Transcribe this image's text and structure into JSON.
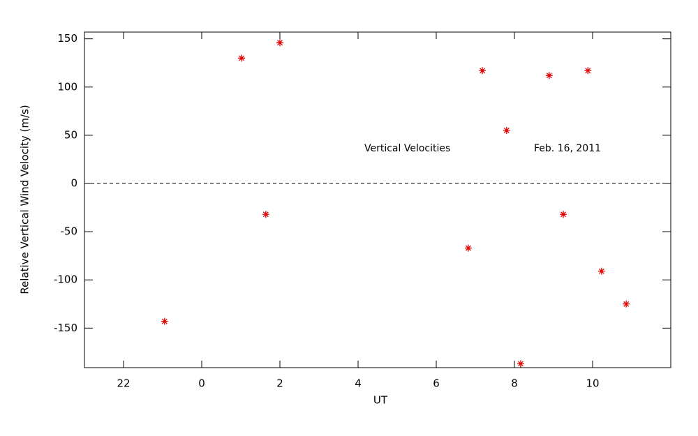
{
  "chart_data": {
    "type": "scatter",
    "x_label": "UT",
    "y_label": "Relative Vertical Wind Velocity (m/s)",
    "annotations": [
      "Vertical Velocities",
      "Feb. 16, 2011"
    ],
    "x": [
      -0.95,
      1.02,
      1.64,
      2.0,
      6.82,
      7.18,
      7.8,
      8.16,
      8.89,
      9.25,
      9.88,
      10.23,
      10.86
    ],
    "series": [
      {
        "color": "#e00000",
        "values": [
          -143,
          130,
          -32,
          146,
          -67,
          117,
          55,
          -187,
          112,
          -32,
          117,
          -91,
          -125
        ]
      }
    ],
    "xlim": [
      -3,
      12
    ],
    "xticks": [
      {
        "value": -2,
        "label": "22"
      },
      0,
      2,
      4,
      6,
      8,
      10
    ],
    "ylim": [
      -191,
      157
    ],
    "yticks": [
      -150,
      -100,
      -50,
      0,
      50,
      100,
      150
    ],
    "reference_line": 0
  }
}
